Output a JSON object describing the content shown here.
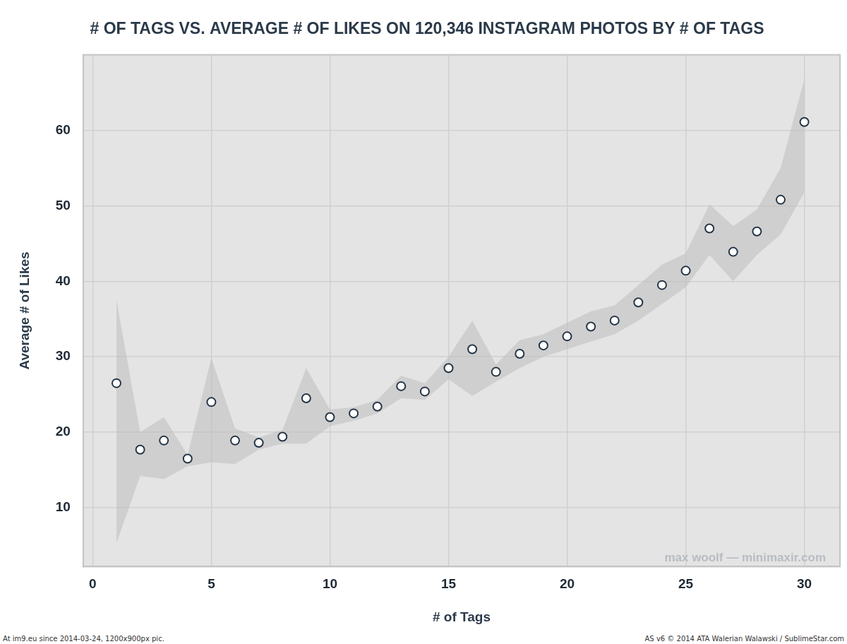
{
  "chart_data": {
    "type": "scatter",
    "title": "# OF TAGS VS. AVERAGE # OF LIKES ON 120,346 INSTAGRAM PHOTOS BY # OF TAGS",
    "x_label": "# of Tags",
    "y_label": "Average # of Likes",
    "x": [
      1,
      2,
      3,
      4,
      5,
      6,
      7,
      8,
      9,
      10,
      11,
      12,
      13,
      14,
      15,
      16,
      17,
      18,
      19,
      20,
      21,
      22,
      23,
      24,
      25,
      26,
      27,
      28,
      29,
      30
    ],
    "values": [
      26.5,
      17.7,
      18.9,
      16.5,
      24.0,
      18.9,
      18.6,
      19.4,
      24.5,
      22.0,
      22.5,
      23.4,
      26.1,
      25.4,
      28.5,
      31.0,
      28.0,
      30.4,
      31.5,
      32.7,
      34.0,
      34.8,
      37.2,
      39.5,
      41.4,
      47.0,
      43.9,
      46.6,
      50.8,
      61.1
    ],
    "lower": [
      5.3,
      14.2,
      13.8,
      15.5,
      16.0,
      15.8,
      17.7,
      18.5,
      18.5,
      20.8,
      21.5,
      22.5,
      24.5,
      24.3,
      27.0,
      24.8,
      26.7,
      28.5,
      30.0,
      31.0,
      32.0,
      33.0,
      34.8,
      37.0,
      39.2,
      43.5,
      40.0,
      43.5,
      46.2,
      51.8
    ],
    "upper": [
      37.5,
      20.0,
      22.0,
      17.0,
      29.8,
      20.5,
      19.3,
      20.3,
      28.5,
      23.0,
      23.3,
      24.3,
      27.5,
      26.5,
      30.0,
      34.8,
      29.0,
      32.2,
      33.0,
      34.5,
      36.0,
      36.8,
      39.5,
      42.2,
      43.7,
      50.2,
      47.3,
      49.5,
      55.0,
      66.8
    ],
    "color": "#253545",
    "marker": "circle",
    "xlim": [
      -0.4,
      31.5
    ],
    "ylim": [
      2.2,
      70
    ],
    "xticks": [
      0,
      5,
      10,
      15,
      20,
      25,
      30
    ],
    "yticks": [
      10,
      20,
      30,
      40,
      50,
      60
    ],
    "grid": true,
    "annotations": [
      "max woolf — minimaxir.com"
    ]
  },
  "footer": {
    "left": "At im9.eu  since 2014-03-24, 1200x900px pic.",
    "right": "AS v6 © 2014 ATA Walerian Walawski / SublimeStar.com"
  }
}
